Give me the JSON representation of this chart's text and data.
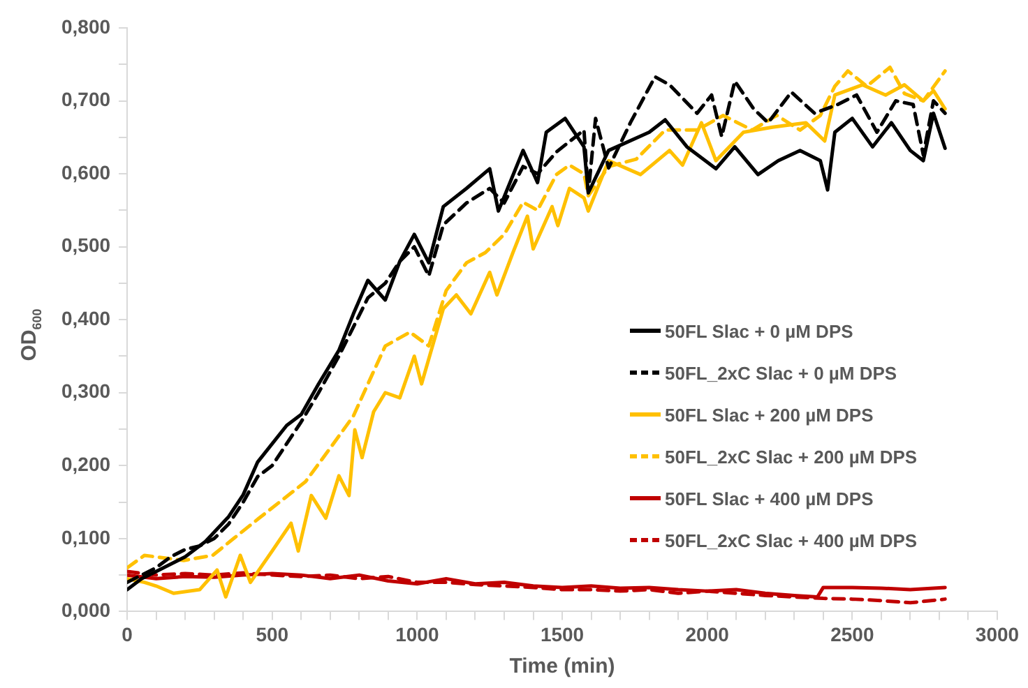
{
  "chart_data": {
    "type": "line",
    "xlabel": "Time (min)",
    "ylabel": "OD$_{600}$",
    "xlim": [
      0,
      3000
    ],
    "ylim": [
      0,
      0.8
    ],
    "xticks": [
      0,
      {
        "value": 100,
        "label": null
      },
      {
        "value": 200,
        "label": null
      },
      {
        "value": 300,
        "label": null
      },
      {
        "value": 400,
        "label": null
      },
      500,
      {
        "value": 600,
        "label": null
      },
      {
        "value": 700,
        "label": null
      },
      {
        "value": 800,
        "label": null
      },
      {
        "value": 900,
        "label": null
      },
      1000,
      {
        "value": 1100,
        "label": null
      },
      {
        "value": 1200,
        "label": null
      },
      {
        "value": 1300,
        "label": null
      },
      {
        "value": 1400,
        "label": null
      },
      1500,
      {
        "value": 1600,
        "label": null
      },
      {
        "value": 1700,
        "label": null
      },
      {
        "value": 1800,
        "label": null
      },
      {
        "value": 1900,
        "label": null
      },
      2000,
      {
        "value": 2100,
        "label": null
      },
      {
        "value": 2200,
        "label": null
      },
      {
        "value": 2300,
        "label": null
      },
      {
        "value": 2400,
        "label": null
      },
      2500,
      {
        "value": 2600,
        "label": null
      },
      {
        "value": 2700,
        "label": null
      },
      {
        "value": 2800,
        "label": null
      },
      {
        "value": 2900,
        "label": null
      },
      3000
    ],
    "yticks": [
      {
        "value": 0,
        "label": "0,000"
      },
      {
        "value": 0.05,
        "label": null
      },
      {
        "value": 0.1,
        "label": "0,100"
      },
      {
        "value": 0.15,
        "label": null
      },
      {
        "value": 0.2,
        "label": "0,200"
      },
      {
        "value": 0.25,
        "label": null
      },
      {
        "value": 0.3,
        "label": "0,300"
      },
      {
        "value": 0.35,
        "label": null
      },
      {
        "value": 0.4,
        "label": "0,400"
      },
      {
        "value": 0.45,
        "label": null
      },
      {
        "value": 0.5,
        "label": "0,500"
      },
      {
        "value": 0.55,
        "label": null
      },
      {
        "value": 0.6,
        "label": "0,600"
      },
      {
        "value": 0.65,
        "label": null
      },
      {
        "value": 0.7,
        "label": "0,700"
      },
      {
        "value": 0.75,
        "label": null
      },
      {
        "value": 0.8,
        "label": "0,800"
      }
    ],
    "grid": false,
    "legend": "right",
    "marker": "none",
    "series": [
      {
        "name": "50FL Slac + 0 µM DPS",
        "color": "#000000",
        "line_style": "solid",
        "x": [
          0,
          50,
          100,
          150,
          200,
          270,
          350,
          400,
          450,
          550,
          600,
          660,
          730,
          780,
          830,
          890,
          940,
          990,
          1040,
          1090,
          1170,
          1250,
          1280,
          1365,
          1415,
          1445,
          1510,
          1575,
          1590,
          1660,
          1800,
          1855,
          1930,
          2030,
          2095,
          2175,
          2245,
          2320,
          2390,
          2415,
          2440,
          2500,
          2570,
          2635,
          2700,
          2745,
          2780,
          2820
        ],
        "values": [
          0.03,
          0.045,
          0.055,
          0.065,
          0.075,
          0.096,
          0.13,
          0.16,
          0.205,
          0.255,
          0.27,
          0.312,
          0.358,
          0.408,
          0.454,
          0.427,
          0.48,
          0.517,
          0.478,
          0.555,
          0.58,
          0.607,
          0.549,
          0.632,
          0.588,
          0.657,
          0.676,
          0.637,
          0.574,
          0.632,
          0.657,
          0.674,
          0.637,
          0.607,
          0.637,
          0.599,
          0.618,
          0.632,
          0.618,
          0.578,
          0.657,
          0.676,
          0.637,
          0.67,
          0.632,
          0.618,
          0.683,
          0.635
        ]
      },
      {
        "name": "50FL_2xC Slac + 0 µM DPS",
        "color": "#000000",
        "line_style": "dashed",
        "x": [
          0,
          50,
          100,
          150,
          200,
          250,
          300,
          350,
          400,
          450,
          500,
          550,
          600,
          660,
          730,
          780,
          830,
          890,
          940,
          990,
          1040,
          1090,
          1170,
          1250,
          1300,
          1365,
          1415,
          1480,
          1575,
          1590,
          1615,
          1660,
          1735,
          1820,
          1870,
          1965,
          2015,
          2050,
          2095,
          2160,
          2210,
          2290,
          2370,
          2450,
          2515,
          2585,
          2650,
          2710,
          2745,
          2780,
          2820
        ],
        "values": [
          0.04,
          0.05,
          0.06,
          0.075,
          0.085,
          0.09,
          0.1,
          0.12,
          0.15,
          0.185,
          0.2,
          0.23,
          0.26,
          0.3,
          0.35,
          0.39,
          0.43,
          0.45,
          0.48,
          0.5,
          0.46,
          0.53,
          0.56,
          0.58,
          0.56,
          0.61,
          0.6,
          0.63,
          0.66,
          0.574,
          0.676,
          0.608,
          0.67,
          0.733,
          0.722,
          0.683,
          0.708,
          0.651,
          0.727,
          0.689,
          0.67,
          0.712,
          0.683,
          0.695,
          0.708,
          0.657,
          0.7,
          0.695,
          0.626,
          0.7,
          0.683
        ]
      },
      {
        "name": "50FL Slac + 200 µM DPS",
        "color": "#ffc000",
        "line_style": "solid",
        "x": [
          0,
          60,
          100,
          160,
          250,
          310,
          340,
          390,
          425,
          500,
          565,
          590,
          635,
          685,
          730,
          765,
          785,
          810,
          850,
          890,
          940,
          990,
          1015,
          1090,
          1135,
          1185,
          1250,
          1275,
          1330,
          1380,
          1400,
          1465,
          1485,
          1525,
          1575,
          1590,
          1660,
          1770,
          1870,
          1915,
          1980,
          2030,
          2125,
          2225,
          2340,
          2405,
          2440,
          2535,
          2615,
          2680,
          2745,
          2780,
          2820
        ],
        "values": [
          0.045,
          0.04,
          0.035,
          0.025,
          0.03,
          0.057,
          0.02,
          0.077,
          0.04,
          0.083,
          0.121,
          0.083,
          0.159,
          0.128,
          0.186,
          0.159,
          0.249,
          0.211,
          0.274,
          0.3,
          0.293,
          0.35,
          0.312,
          0.415,
          0.434,
          0.408,
          0.465,
          0.434,
          0.492,
          0.542,
          0.497,
          0.555,
          0.529,
          0.58,
          0.567,
          0.549,
          0.618,
          0.599,
          0.632,
          0.612,
          0.67,
          0.618,
          0.657,
          0.664,
          0.67,
          0.645,
          0.708,
          0.722,
          0.708,
          0.722,
          0.7,
          0.714,
          0.689
        ]
      },
      {
        "name": "50FL_2xC Slac + 200 µM DPS",
        "color": "#ffc000",
        "line_style": "dashed",
        "x": [
          0,
          60,
          195,
          295,
          370,
          455,
          535,
          615,
          700,
          780,
          845,
          890,
          975,
          1040,
          1100,
          1170,
          1235,
          1300,
          1365,
          1415,
          1480,
          1525,
          1575,
          1590,
          1660,
          1755,
          1855,
          1965,
          2055,
          2155,
          2240,
          2320,
          2390,
          2440,
          2485,
          2550,
          2630,
          2680,
          2745,
          2820
        ],
        "values": [
          0.06,
          0.077,
          0.07,
          0.077,
          0.101,
          0.128,
          0.153,
          0.178,
          0.224,
          0.268,
          0.325,
          0.364,
          0.383,
          0.364,
          0.44,
          0.478,
          0.492,
          0.517,
          0.561,
          0.55,
          0.599,
          0.612,
          0.6,
          0.57,
          0.61,
          0.62,
          0.66,
          0.66,
          0.68,
          0.66,
          0.68,
          0.66,
          0.68,
          0.72,
          0.741,
          0.72,
          0.746,
          0.71,
          0.7,
          0.741
        ]
      },
      {
        "name": "50FL Slac + 400 µM DPS",
        "color": "#c00000",
        "line_style": "solid",
        "x": [
          0,
          100,
          200,
          300,
          400,
          500,
          600,
          700,
          800,
          900,
          1000,
          1100,
          1200,
          1300,
          1400,
          1500,
          1600,
          1700,
          1800,
          1900,
          2000,
          2100,
          2200,
          2300,
          2380,
          2400,
          2500,
          2600,
          2700,
          2820
        ],
        "values": [
          0.05,
          0.045,
          0.048,
          0.047,
          0.05,
          0.052,
          0.05,
          0.045,
          0.05,
          0.042,
          0.038,
          0.045,
          0.038,
          0.04,
          0.035,
          0.033,
          0.035,
          0.032,
          0.033,
          0.03,
          0.028,
          0.03,
          0.025,
          0.022,
          0.02,
          0.033,
          0.033,
          0.032,
          0.03,
          0.033
        ]
      },
      {
        "name": "50FL_2xC Slac + 400 µM DPS",
        "color": "#c00000",
        "line_style": "dashed",
        "x": [
          0,
          100,
          200,
          300,
          400,
          500,
          600,
          700,
          800,
          900,
          1000,
          1100,
          1200,
          1300,
          1400,
          1500,
          1600,
          1700,
          1800,
          1900,
          2000,
          2100,
          2200,
          2300,
          2400,
          2500,
          2600,
          2700,
          2820
        ],
        "values": [
          0.055,
          0.05,
          0.052,
          0.05,
          0.053,
          0.05,
          0.048,
          0.05,
          0.045,
          0.048,
          0.04,
          0.04,
          0.037,
          0.035,
          0.033,
          0.03,
          0.03,
          0.028,
          0.03,
          0.025,
          0.028,
          0.025,
          0.022,
          0.02,
          0.018,
          0.017,
          0.015,
          0.012,
          0.017
        ]
      }
    ]
  }
}
